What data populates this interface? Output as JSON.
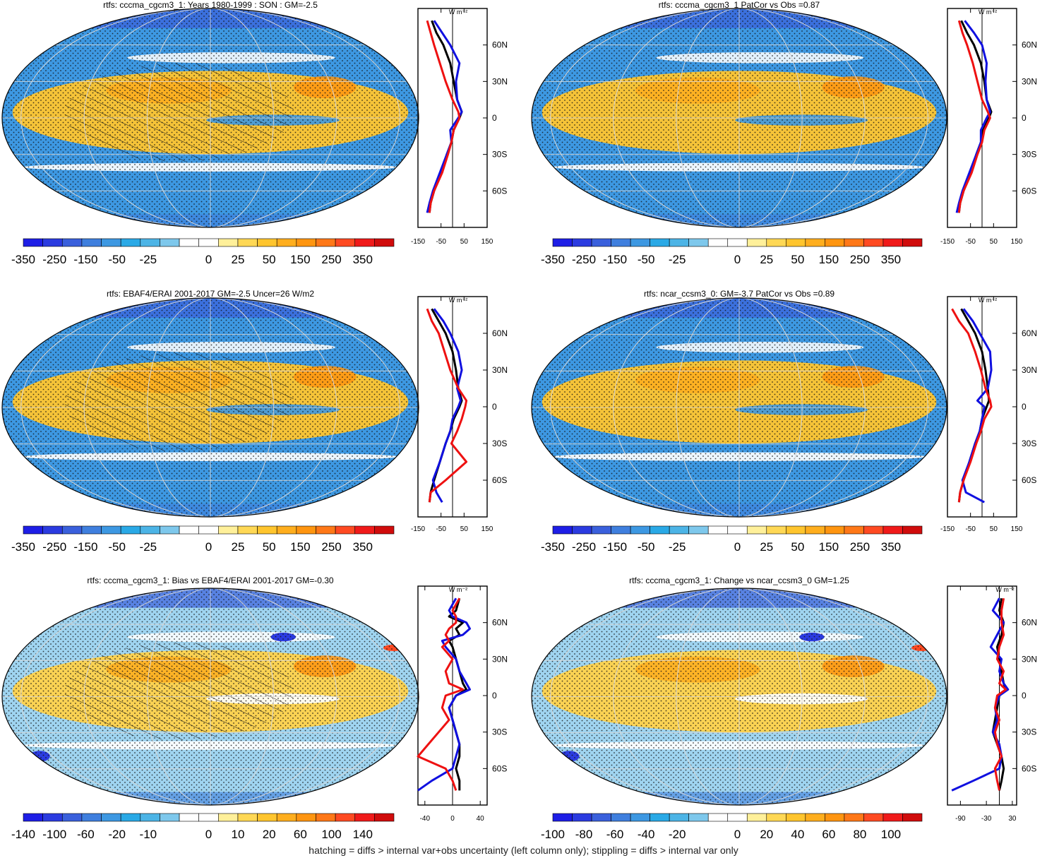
{
  "footer": "hatching = diffs > internal var+obs uncertainty (left column only); stippling = diffs > internal var only",
  "colors": {
    "palette": [
      "#1e1ee6",
      "#2b3be0",
      "#3a60dc",
      "#3f7fde",
      "#3d98e2",
      "#2aa9e6",
      "#4cb4e6",
      "#7ec8ec",
      "#ffffff",
      "#ffffff",
      "#fff09a",
      "#ffd855",
      "#ffc52e",
      "#ffae1e",
      "#ff9510",
      "#ff7818",
      "#ff4a22",
      "#f01a1a",
      "#d00c0c"
    ],
    "cool_bg": "#3d98e2",
    "warm_bg": "#ffc52e",
    "obs_line": "#000000",
    "model_a": "#1010e0",
    "model_b": "#ee1111"
  },
  "chart_data": [
    {
      "type": "heatmap",
      "title": "rtfs: cccma_cgcm3_1: Years 1980-1999 : SON : GM=-2.5",
      "colorbar_labels": [
        "-350",
        "-250",
        "-150",
        "-50",
        "-25",
        "0",
        "25",
        "50",
        "150",
        "250",
        "350"
      ],
      "hatching": true,
      "profile": {
        "x_ticks": [
          "-150",
          "-50",
          "50",
          "150"
        ],
        "x_range": [
          -150,
          150
        ],
        "y_ticks": [
          "60N",
          "30N",
          "0",
          "30S",
          "60S"
        ],
        "y_range": [
          -90,
          90
        ],
        "unit": "W m⁻²",
        "series": [
          {
            "color": "#000000",
            "lat": [
              80,
              70,
              60,
              45,
              30,
              15,
              5,
              0,
              -10,
              -20,
              -30,
              -45,
              -60,
              -70,
              -78
            ],
            "values": [
              -90,
              -70,
              -40,
              -10,
              5,
              20,
              40,
              30,
              5,
              -5,
              -25,
              -50,
              -80,
              -95,
              -100
            ]
          },
          {
            "color": "#1010e0",
            "lat": [
              80,
              70,
              60,
              45,
              30,
              15,
              5,
              0,
              -10,
              -20,
              -30,
              -45,
              -60,
              -70,
              -78
            ],
            "values": [
              -80,
              -45,
              -10,
              30,
              15,
              20,
              40,
              25,
              -10,
              -5,
              -25,
              -55,
              -85,
              -100,
              -110
            ]
          },
          {
            "color": "#ee1111",
            "lat": [
              80,
              70,
              60,
              45,
              30,
              15,
              5,
              0,
              -10,
              -20,
              -30,
              -45,
              -60,
              -70,
              -78
            ],
            "values": [
              -110,
              -95,
              -80,
              -55,
              -30,
              0,
              25,
              30,
              5,
              -5,
              -20,
              -45,
              -80,
              -95,
              -100
            ]
          }
        ]
      }
    },
    {
      "type": "heatmap",
      "title": "rtfs: cccma_cgcm3_1 PatCor vs Obs =0.87",
      "colorbar_labels": [
        "-350",
        "-250",
        "-150",
        "-50",
        "-25",
        "0",
        "25",
        "50",
        "150",
        "250",
        "350"
      ],
      "hatching": false,
      "profile": {
        "x_ticks": [
          "-150",
          "-50",
          "50",
          "150"
        ],
        "x_range": [
          -150,
          150
        ],
        "y_ticks": [
          "60N",
          "30N",
          "0",
          "30S",
          "60S"
        ],
        "y_range": [
          -90,
          90
        ],
        "unit": "W m⁻²",
        "series": [
          {
            "color": "#000000",
            "lat": [
              80,
              70,
              60,
              45,
              30,
              15,
              5,
              0,
              -10,
              -20,
              -30,
              -45,
              -60,
              -70,
              -78
            ],
            "values": [
              -90,
              -65,
              -35,
              -5,
              10,
              20,
              40,
              30,
              5,
              -5,
              -25,
              -50,
              -80,
              -95,
              -100
            ]
          },
          {
            "color": "#1010e0",
            "lat": [
              80,
              70,
              60,
              45,
              30,
              15,
              5,
              0,
              -10,
              -20,
              -30,
              -45,
              -60,
              -70,
              -78
            ],
            "values": [
              -75,
              -35,
              0,
              20,
              15,
              20,
              35,
              20,
              -5,
              -5,
              -25,
              -55,
              -85,
              -100,
              -110
            ]
          },
          {
            "color": "#ee1111",
            "lat": [
              80,
              70,
              60,
              45,
              30,
              15,
              5,
              0,
              -10,
              -20,
              -30,
              -45,
              -60,
              -70,
              -78
            ],
            "values": [
              -100,
              -85,
              -65,
              -40,
              -20,
              0,
              25,
              35,
              10,
              0,
              -20,
              -45,
              -80,
              -95,
              -100
            ]
          }
        ]
      }
    },
    {
      "type": "heatmap",
      "title": "rtfs: EBAF4/ERAI 2001-2017 GM=-2.5 Uncer=26 W/m2",
      "colorbar_labels": [
        "-350",
        "-250",
        "-150",
        "-50",
        "-25",
        "0",
        "25",
        "50",
        "150",
        "250",
        "350"
      ],
      "hatching": true,
      "profile": {
        "x_ticks": [
          "-150",
          "-50",
          "50",
          "150"
        ],
        "x_range": [
          -150,
          150
        ],
        "y_ticks": [
          "60N",
          "30N",
          "0",
          "30S",
          "60S"
        ],
        "y_range": [
          -90,
          90
        ],
        "unit": "W m⁻²",
        "series": [
          {
            "color": "#000000",
            "lat": [
              80,
              70,
              60,
              45,
              30,
              15,
              5,
              0,
              -10,
              -20,
              -30,
              -45,
              -60,
              -70,
              -78
            ],
            "values": [
              -90,
              -60,
              -30,
              0,
              15,
              25,
              40,
              30,
              5,
              -10,
              -30,
              -55,
              -80,
              -95,
              -100
            ]
          },
          {
            "color": "#1010e0",
            "lat": [
              80,
              70,
              60,
              45,
              30,
              15,
              5,
              0,
              -10,
              -20,
              -30,
              -45,
              -60,
              -70,
              -78
            ],
            "values": [
              -80,
              -40,
              -10,
              25,
              40,
              20,
              35,
              25,
              0,
              -10,
              -30,
              -55,
              -85,
              -70,
              -45
            ]
          },
          {
            "color": "#ee1111",
            "lat": [
              80,
              70,
              60,
              45,
              30,
              15,
              5,
              0,
              -10,
              -20,
              -30,
              -45,
              -60,
              -70,
              -78
            ],
            "values": [
              -110,
              -90,
              -60,
              -35,
              -10,
              25,
              60,
              55,
              40,
              20,
              -5,
              60,
              -30,
              -95,
              -100
            ]
          }
        ]
      }
    },
    {
      "type": "heatmap",
      "title": "rtfs: ncar_ccsm3_0: GM=-3.7 PatCor vs Obs =0.89",
      "colorbar_labels": [
        "-350",
        "-250",
        "-150",
        "-50",
        "-25",
        "0",
        "25",
        "50",
        "150",
        "250",
        "350"
      ],
      "hatching": false,
      "profile": {
        "x_ticks": [
          "-150",
          "-50",
          "50",
          "150"
        ],
        "x_range": [
          -150,
          150
        ],
        "y_ticks": [
          "60N",
          "30N",
          "0",
          "30S",
          "60S"
        ],
        "y_range": [
          -90,
          90
        ],
        "unit": "W m⁻²",
        "series": [
          {
            "color": "#000000",
            "lat": [
              80,
              70,
              60,
              45,
              30,
              15,
              5,
              0,
              -10,
              -20,
              -30,
              -45,
              -60,
              -70,
              -78
            ],
            "values": [
              -90,
              -60,
              -30,
              0,
              15,
              25,
              30,
              20,
              0,
              -10,
              -30,
              -55,
              -80,
              -95,
              -100
            ]
          },
          {
            "color": "#1010e0",
            "lat": [
              80,
              70,
              60,
              45,
              30,
              15,
              5,
              0,
              -10,
              -20,
              -30,
              -45,
              -60,
              -70,
              -78
            ],
            "values": [
              -80,
              -40,
              -10,
              35,
              40,
              25,
              -20,
              10,
              0,
              -10,
              -30,
              -55,
              -85,
              -70,
              10
            ]
          },
          {
            "color": "#ee1111",
            "lat": [
              80,
              70,
              60,
              45,
              30,
              15,
              5,
              0,
              -10,
              -20,
              -30,
              -45,
              -60,
              -70,
              -78
            ],
            "values": [
              -130,
              -100,
              -60,
              -30,
              -5,
              15,
              35,
              40,
              10,
              -5,
              -25,
              -50,
              -80,
              -95,
              -100
            ]
          }
        ]
      }
    },
    {
      "type": "heatmap",
      "title": "rtfs: cccma_cgcm3_1: Bias vs EBAF4/ERAI 2001-2017  GM=-0.30",
      "colorbar_labels": [
        "-140",
        "-100",
        "-60",
        "-20",
        "-10",
        "0",
        "10",
        "20",
        "60",
        "100",
        "140"
      ],
      "hatching": true,
      "profile": {
        "x_ticks": [
          "-40",
          "0",
          "40"
        ],
        "x_range": [
          -50,
          50
        ],
        "y_ticks": [
          "60N",
          "30N",
          "0",
          "30S",
          "60S"
        ],
        "y_range": [
          -90,
          90
        ],
        "unit": "W m⁻²",
        "series": [
          {
            "color": "#000000",
            "lat": [
              80,
              70,
              65,
              60,
              55,
              50,
              45,
              40,
              30,
              20,
              10,
              5,
              0,
              -10,
              -20,
              -30,
              -40,
              -50,
              -60,
              -70,
              -78
            ],
            "values": [
              10,
              5,
              -5,
              15,
              5,
              10,
              -5,
              0,
              5,
              10,
              15,
              20,
              5,
              -5,
              0,
              5,
              10,
              10,
              5,
              10,
              10
            ]
          },
          {
            "color": "#1010e0",
            "lat": [
              80,
              70,
              65,
              60,
              55,
              50,
              45,
              40,
              30,
              20,
              10,
              5,
              0,
              -10,
              -20,
              -30,
              -40,
              -50,
              -60,
              -70,
              -78
            ],
            "values": [
              5,
              -5,
              0,
              20,
              25,
              15,
              -15,
              -10,
              5,
              10,
              20,
              25,
              5,
              -5,
              0,
              5,
              10,
              5,
              0,
              -30,
              -50
            ]
          },
          {
            "color": "#ee1111",
            "lat": [
              80,
              70,
              65,
              60,
              55,
              50,
              45,
              40,
              30,
              20,
              10,
              5,
              0,
              -10,
              -20,
              -30,
              -40,
              -50,
              -60,
              -70,
              -78
            ],
            "values": [
              10,
              0,
              5,
              5,
              -5,
              -10,
              -5,
              -15,
              0,
              -10,
              -5,
              15,
              -10,
              -15,
              -5,
              -20,
              -35,
              -50,
              -10,
              0,
              5
            ]
          }
        ]
      }
    },
    {
      "type": "heatmap",
      "title": "rtfs: cccma_cgcm3_1: Change vs ncar_ccsm3_0 GM=1.25",
      "colorbar_labels": [
        "-100",
        "-80",
        "-60",
        "-40",
        "-20",
        "0",
        "20",
        "40",
        "60",
        "80",
        "100"
      ],
      "hatching": false,
      "profile": {
        "x_ticks": [
          "-90",
          "-30",
          "30"
        ],
        "x_range": [
          -120,
          40
        ],
        "y_ticks": [
          "60N",
          "30N",
          "0",
          "30S",
          "60S"
        ],
        "y_range": [
          -90,
          90
        ],
        "unit": "W m⁻²",
        "series": [
          {
            "color": "#000000",
            "lat": [
              80,
              70,
              60,
              50,
              40,
              30,
              20,
              10,
              5,
              0,
              -10,
              -20,
              -30,
              -40,
              -50,
              -60,
              -70,
              -78
            ],
            "values": [
              5,
              0,
              10,
              5,
              -5,
              0,
              5,
              10,
              15,
              0,
              -5,
              -10,
              -15,
              -5,
              5,
              10,
              5,
              0
            ],
            "note": ""
          },
          {
            "color": "#1010e0",
            "lat": [
              80,
              70,
              60,
              50,
              40,
              30,
              20,
              10,
              5,
              0,
              -10,
              -20,
              -30,
              -40,
              -50,
              -60,
              -70,
              -78
            ],
            "values": [
              0,
              -15,
              10,
              -5,
              -20,
              5,
              0,
              10,
              20,
              0,
              -10,
              -5,
              -15,
              0,
              5,
              0,
              -60,
              -110
            ]
          },
          {
            "color": "#ee1111",
            "lat": [
              80,
              70,
              60,
              50,
              40,
              30,
              20,
              10,
              5,
              0,
              -10,
              -20,
              -30,
              -40,
              -50,
              -60,
              -70,
              -78
            ],
            "values": [
              10,
              5,
              5,
              10,
              0,
              -5,
              10,
              0,
              15,
              -5,
              -10,
              0,
              -10,
              -5,
              5,
              -10,
              -5,
              0
            ]
          }
        ]
      }
    }
  ]
}
